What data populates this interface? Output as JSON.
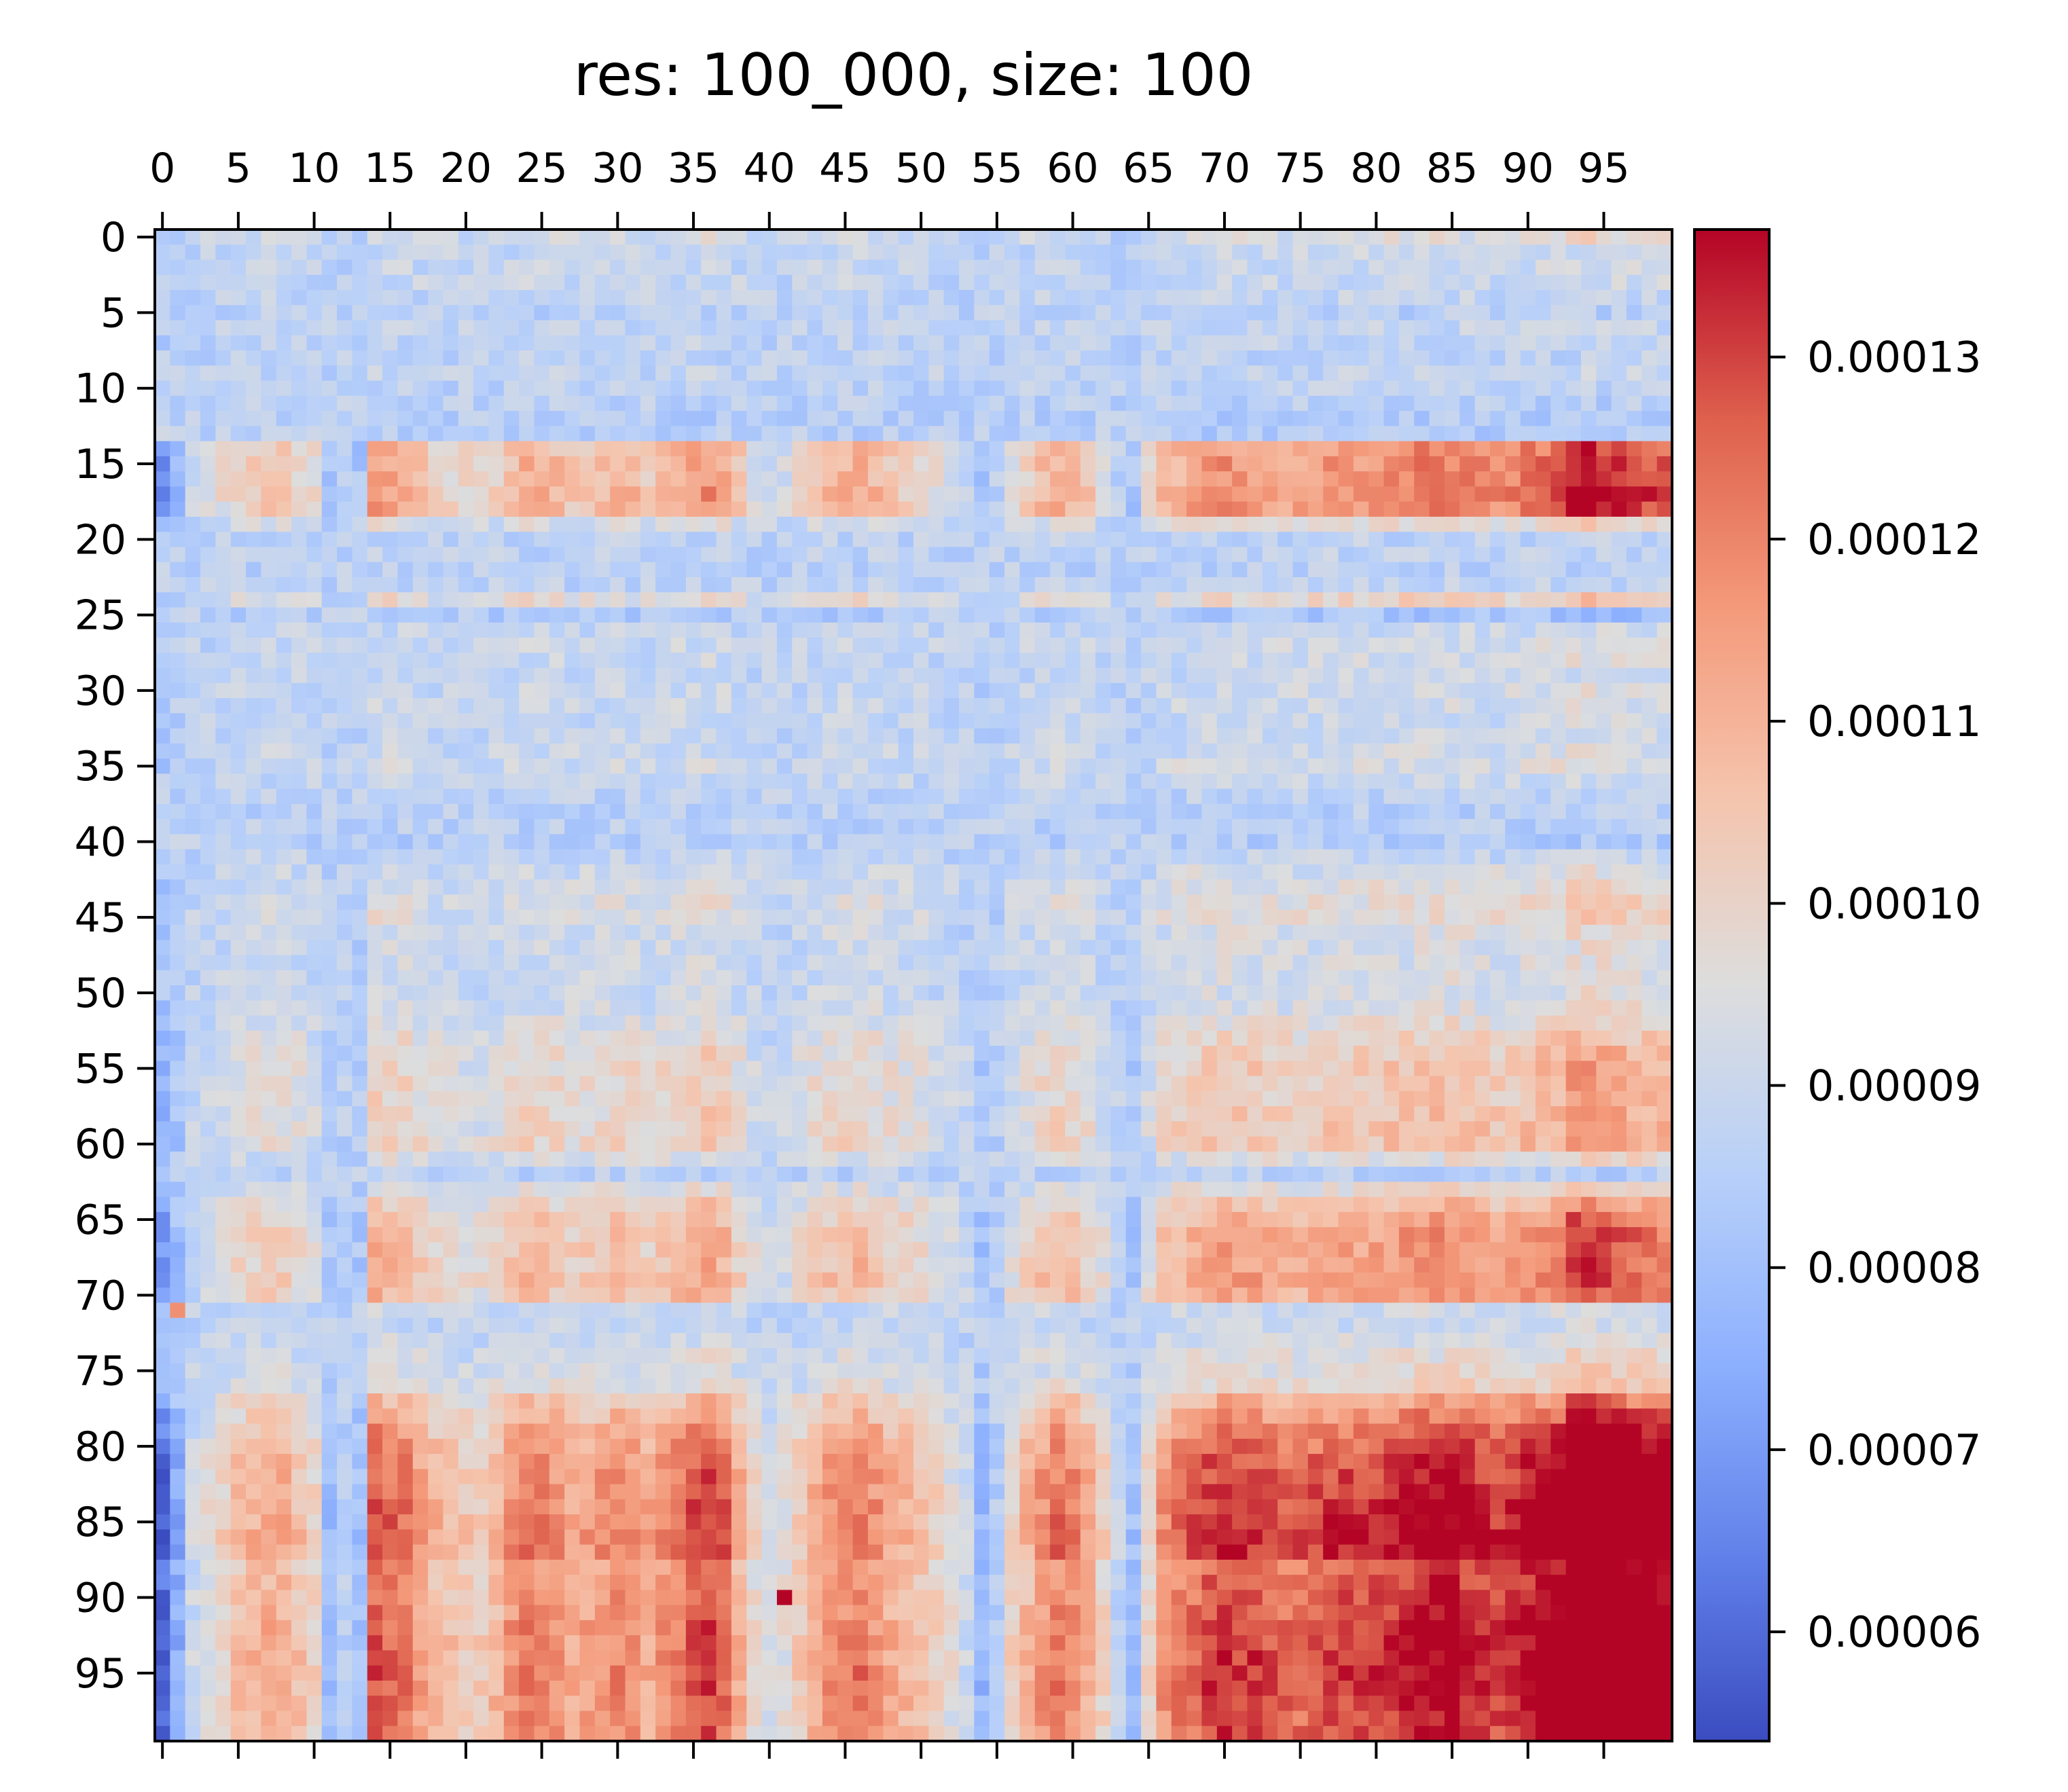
{
  "chart_data": {
    "type": "heatmap",
    "title": "res: 100_000, size: 100",
    "rows": 100,
    "cols": 100,
    "x_ticks": [
      0,
      5,
      10,
      15,
      20,
      25,
      30,
      35,
      40,
      45,
      50,
      55,
      60,
      65,
      70,
      75,
      80,
      85,
      90,
      95
    ],
    "y_ticks": [
      0,
      5,
      10,
      15,
      20,
      25,
      30,
      35,
      40,
      45,
      50,
      55,
      60,
      65,
      70,
      75,
      80,
      85,
      90,
      95
    ],
    "x_tick_position": "top",
    "colormap": "coolwarm",
    "value_range": [
      5.4e-05,
      0.000137
    ],
    "colorbar": {
      "position": "right",
      "ticks": [
        6e-05,
        7e-05,
        8e-05,
        9e-05,
        0.0001,
        0.00011,
        0.00012,
        0.00013
      ],
      "labels": [
        "0.00006",
        "0.00007",
        "0.00008",
        "0.00009",
        "0.00010",
        "0.00011",
        "0.00012",
        "0.00013"
      ]
    },
    "row_means": [
      9.2e-05,
      8.9e-05,
      8.9e-05,
      8.9e-05,
      8.8e-05,
      8.6e-05,
      8.8e-05,
      8.8e-05,
      8.7e-05,
      8.8e-05,
      8.7e-05,
      8.6e-05,
      8.5e-05,
      8.5e-05,
      0.000107,
      0.000108,
      0.000108,
      0.00011,
      0.000109,
      9.4e-05,
      8.7e-05,
      8.7e-05,
      8.6e-05,
      8.7e-05,
      9.6e-05,
      8.3e-05,
      8.9e-05,
      9e-05,
      9e-05,
      8.9e-05,
      9e-05,
      9e-05,
      8.9e-05,
      8.9e-05,
      9e-05,
      9.1e-05,
      8.9e-05,
      8.7e-05,
      8.6e-05,
      8.6e-05,
      8.5e-05,
      8.8e-05,
      9.1e-05,
      9.3e-05,
      9.4e-05,
      9.4e-05,
      9.2e-05,
      9.1e-05,
      9.1e-05,
      9.1e-05,
      9.1e-05,
      9.2e-05,
      9.4e-05,
      9.6e-05,
      9.8e-05,
      9.9e-05,
      9.9e-05,
      9.8e-05,
      9.9e-05,
      0.0001,
      0.0001,
      9.3e-05,
      8.6e-05,
      9.4e-05,
      0.0001,
      0.000104,
      0.000106,
      0.000106,
      0.000106,
      0.000107,
      0.000105,
      9e-05,
      8.9e-05,
      9.1e-05,
      9.3e-05,
      9.4e-05,
      9.6e-05,
      0.000104,
      0.000108,
      0.000112,
      0.000114,
      0.000116,
      0.000117,
      0.000118,
      0.000119,
      0.00012,
      0.000121,
      0.00012,
      0.000114,
      0.000115,
      0.000116,
      0.000117,
      0.000118,
      0.000118,
      0.000119,
      0.000119,
      0.000119,
      0.000118,
      0.000117,
      0.000117
    ],
    "col_means": [
      7.6e-05,
      8.2e-05,
      8.8e-05,
      9e-05,
      9.2e-05,
      9.4e-05,
      9.5e-05,
      9.6e-05,
      9.6e-05,
      9.4e-05,
      9.2e-05,
      8.4e-05,
      8.6e-05,
      8.4e-05,
      0.000102,
      0.000101,
      0.0001,
      9.7e-05,
      9.5e-05,
      9.4e-05,
      9.3e-05,
      9.3e-05,
      9.5e-05,
      9.8e-05,
      0.0001,
      9.9e-05,
      9.8e-05,
      9.6e-05,
      9.7e-05,
      9.8e-05,
      9.9e-05,
      9.8e-05,
      9.6e-05,
      9.8e-05,
      0.0001,
      0.000102,
      0.000103,
      0.000101,
      9.6e-05,
      9.1e-05,
      8.9e-05,
      9e-05,
      9.3e-05,
      9.6e-05,
      9.8e-05,
      9.9e-05,
      0.0001,
      9.8e-05,
      9.6e-05,
      9.5e-05,
      9.4e-05,
      9.2e-05,
      9e-05,
      8.8e-05,
      8.3e-05,
      8.6e-05,
      9.2e-05,
      9.5e-05,
      9.8e-05,
      0.0001,
      9.9e-05,
      9.6e-05,
      9.2e-05,
      8.7e-05,
      8.4e-05,
      9.2e-05,
      9.8e-05,
      0.0001,
      0.000101,
      0.000103,
      0.000104,
      0.000103,
      0.000103,
      0.000102,
      0.000101,
      0.000101,
      0.000102,
      0.000103,
      0.000103,
      0.000103,
      0.000103,
      0.000104,
      0.000105,
      0.000106,
      0.000106,
      0.000106,
      0.000105,
      0.000104,
      0.000103,
      0.000104,
      0.000106,
      0.000107,
      0.000108,
      0.000114,
      0.000115,
      0.000112,
      0.000111,
      0.00011,
      0.000109,
      0.000108
    ],
    "outliers": [
      {
        "row": 71,
        "col": 1,
        "value": 0.000118
      },
      {
        "row": 90,
        "col": 41,
        "value": 0.000137
      }
    ]
  }
}
